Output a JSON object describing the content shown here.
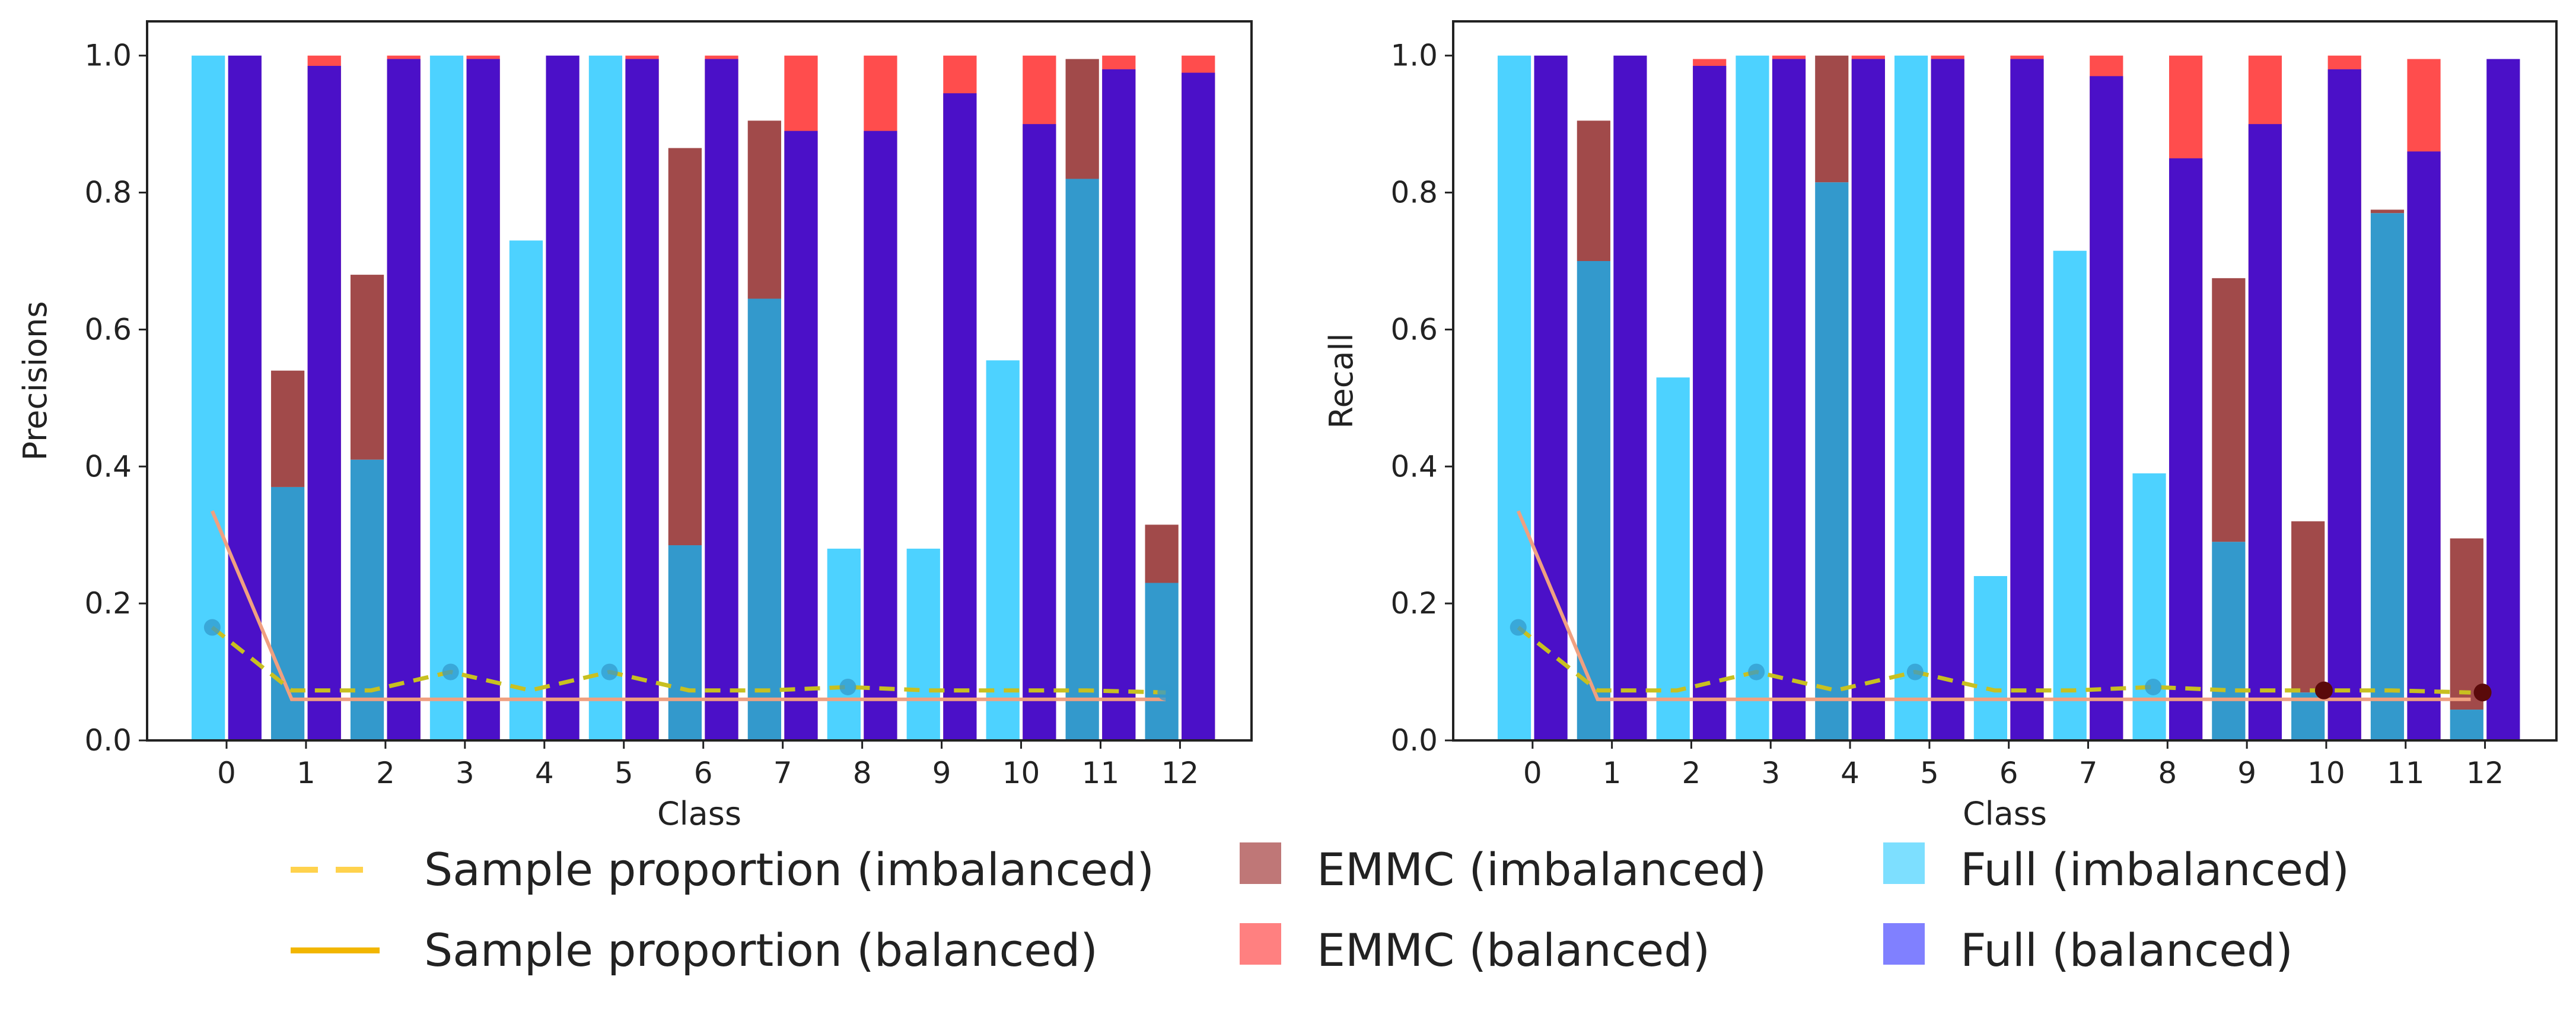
{
  "legend": [
    {
      "key": "sample_imbalanced",
      "label": "Sample proportion (imbalanced)",
      "style": "dashed-line",
      "color": "#FFD24D"
    },
    {
      "key": "sample_balanced",
      "label": "Sample proportion (balanced)",
      "style": "line",
      "color": "#F2B600"
    },
    {
      "key": "emmc_imbalanced",
      "label": "EMMC (imbalanced)",
      "style": "patch",
      "color": "#BF7777"
    },
    {
      "key": "emmc_balanced",
      "label": "EMMC (balanced)",
      "style": "patch",
      "color": "#FF8080"
    },
    {
      "key": "full_imbalanced",
      "label": "Full (imbalanced)",
      "style": "patch",
      "color": "#7DDFFF"
    },
    {
      "key": "full_balanced",
      "label": "Full (balanced)",
      "style": "patch",
      "color": "#8080FF"
    }
  ],
  "colors": {
    "emmc_imbalanced": "#A14A4A",
    "emmc_balanced": "#FF4D4D",
    "full_imbalanced": "#4DD2FF",
    "full_balanced": "#4B10C8",
    "overlap": "#3399CC",
    "sample_imbalanced_line": "#C8C020",
    "sample_balanced_line": "#F0A080",
    "marker": "#3399CC",
    "marker_dark": "#5A0A0A"
  },
  "chart_data": [
    {
      "type": "bar",
      "xlabel": "Class",
      "ylabel": "Precisions",
      "ylim": [
        0,
        1.05
      ],
      "yticks": [
        "0.0",
        "0.2",
        "0.4",
        "0.6",
        "0.8",
        "1.0"
      ],
      "categories": [
        "0",
        "1",
        "2",
        "3",
        "4",
        "5",
        "6",
        "7",
        "8",
        "9",
        "10",
        "11",
        "12"
      ],
      "grid": false,
      "series": [
        {
          "key": "emmc_imbalanced",
          "values": [
            0.0,
            0.54,
            0.68,
            0.0,
            0.0,
            0.0,
            0.865,
            0.905,
            0.0,
            0.0,
            0.0,
            0.995,
            0.315
          ]
        },
        {
          "key": "full_imbalanced",
          "values": [
            1.0,
            0.37,
            0.41,
            1.0,
            0.73,
            1.0,
            0.285,
            0.645,
            0.28,
            0.28,
            0.555,
            0.82,
            0.23
          ]
        },
        {
          "key": "emmc_balanced",
          "values": [
            0.0,
            1.0,
            1.0,
            1.0,
            0.0,
            1.0,
            1.0,
            1.0,
            1.0,
            1.0,
            1.0,
            1.0,
            1.0
          ]
        },
        {
          "key": "full_balanced",
          "values": [
            1.0,
            0.985,
            0.995,
            0.995,
            1.0,
            0.995,
            0.995,
            0.89,
            0.89,
            0.945,
            0.9,
            0.98,
            0.975
          ]
        },
        {
          "key": "sample_imbalanced",
          "values": [
            0.165,
            0.073,
            0.073,
            0.1,
            0.073,
            0.1,
            0.073,
            0.073,
            0.078,
            0.073,
            0.073,
            0.073,
            0.07
          ]
        },
        {
          "key": "sample_balanced",
          "values": [
            0.335,
            0.06,
            0.06,
            0.06,
            0.06,
            0.06,
            0.06,
            0.06,
            0.06,
            0.06,
            0.06,
            0.06,
            0.06
          ]
        }
      ],
      "markers": [
        0,
        3,
        5,
        8,
        12
      ],
      "dark_markers": []
    },
    {
      "type": "bar",
      "xlabel": "Class",
      "ylabel": "Recall",
      "ylim": [
        0,
        1.05
      ],
      "yticks": [
        "0.0",
        "0.2",
        "0.4",
        "0.6",
        "0.8",
        "1.0"
      ],
      "categories": [
        "0",
        "1",
        "2",
        "3",
        "4",
        "5",
        "6",
        "7",
        "8",
        "9",
        "10",
        "11",
        "12"
      ],
      "grid": false,
      "series": [
        {
          "key": "emmc_imbalanced",
          "values": [
            0.0,
            0.905,
            0.0,
            0.0,
            1.0,
            0.0,
            0.0,
            0.0,
            0.0,
            0.675,
            0.32,
            0.775,
            0.295
          ]
        },
        {
          "key": "full_imbalanced",
          "values": [
            1.0,
            0.7,
            0.53,
            1.0,
            0.815,
            1.0,
            0.24,
            0.715,
            0.39,
            0.29,
            0.07,
            0.77,
            0.045
          ]
        },
        {
          "key": "emmc_balanced",
          "values": [
            0.0,
            0.0,
            0.995,
            1.0,
            1.0,
            1.0,
            1.0,
            1.0,
            1.0,
            1.0,
            1.0,
            0.995,
            0.0
          ]
        },
        {
          "key": "full_balanced",
          "values": [
            1.0,
            1.0,
            0.985,
            0.995,
            0.995,
            0.995,
            0.995,
            0.97,
            0.85,
            0.9,
            0.98,
            0.86,
            0.995
          ]
        },
        {
          "key": "sample_imbalanced",
          "values": [
            0.165,
            0.073,
            0.073,
            0.1,
            0.073,
            0.1,
            0.073,
            0.073,
            0.078,
            0.073,
            0.073,
            0.073,
            0.07
          ]
        },
        {
          "key": "sample_balanced",
          "values": [
            0.335,
            0.06,
            0.06,
            0.06,
            0.06,
            0.06,
            0.06,
            0.06,
            0.06,
            0.06,
            0.06,
            0.06,
            0.06
          ]
        }
      ],
      "markers": [
        0,
        3,
        5,
        8
      ],
      "dark_markers": [
        10,
        12
      ]
    }
  ]
}
